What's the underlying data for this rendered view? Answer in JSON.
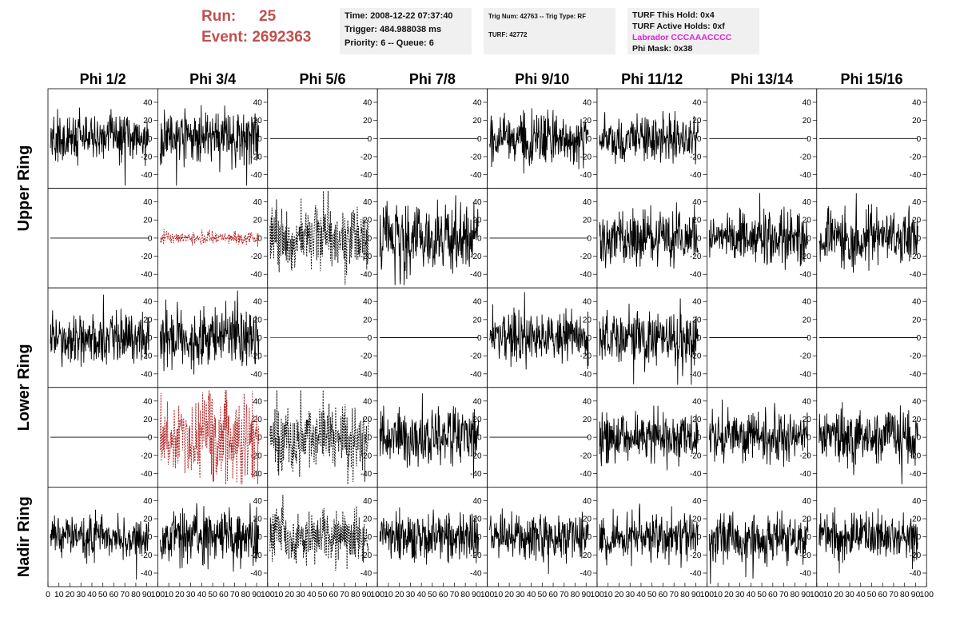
{
  "header": {
    "run_label": "Run:",
    "run_value": "25",
    "event_label": "Event:",
    "event_value": "2692363",
    "time": "Time: 2008-12-22 07:37:40",
    "trigger": "Trigger: 484.988038 ms",
    "priority": "Priority: 6 -- Queue: 6",
    "trig_num": "Trig Num: 42763 -- Trig Type: RF",
    "turf": "TURF: 42772",
    "turf_hold": "TURF This Hold: 0x4",
    "turf_active": "TURF Active Holds: 0xf",
    "labrador": "Labrador CCCAAACCCC",
    "phi_mask": "Phi Mask: 0x38"
  },
  "colors": {
    "accent_red": "#c0504d",
    "labrador_magenta": "#e020e0",
    "trace_black": "#000000",
    "trace_red": "#b22222",
    "trace_green": "#2e8b22"
  },
  "chart_data": {
    "type": "line",
    "columns": [
      "Phi 1/2",
      "Phi 3/4",
      "Phi 5/6",
      "Phi 7/8",
      "Phi 9/10",
      "Phi 11/12",
      "Phi 13/14",
      "Phi 15/16"
    ],
    "rows": [
      "Upper Ring",
      "Upper Ring",
      "Lower Ring",
      "Lower Ring",
      "Nadir Ring"
    ],
    "row_labels": [
      "Upper Ring",
      "Lower Ring",
      "Nadir Ring"
    ],
    "ylim": [
      -55,
      55
    ],
    "yticks": [
      -40,
      -20,
      0,
      20,
      40
    ],
    "xlim": [
      0,
      100
    ],
    "xticks": [
      0,
      10,
      20,
      30,
      40,
      50,
      60,
      70,
      80,
      90,
      100
    ],
    "grid": false,
    "panels": [
      [
        "noise:14",
        "noise:16",
        "flat",
        "flat",
        "noise:16",
        "noise:14",
        "flat",
        "flat"
      ],
      [
        "flat",
        "noise-red:4",
        "noise-dashed:18",
        "noise:20",
        "flat",
        "noise:16",
        "noise:15",
        "noise:17"
      ],
      [
        "noise:15",
        "noise:18",
        "flat-green",
        "flat",
        "noise:16",
        "noise:17",
        "flat",
        "flat"
      ],
      [
        "flat",
        "noise-red:28",
        "noise-dashed:20",
        "noise:16",
        "flat",
        "noise:15",
        "noise:14",
        "noise:16"
      ],
      [
        "noise:13",
        "noise:15",
        "noise-dashed:15",
        "noise:14",
        "noise:14",
        "noise:14",
        "noise:14",
        "noise:14"
      ]
    ]
  }
}
